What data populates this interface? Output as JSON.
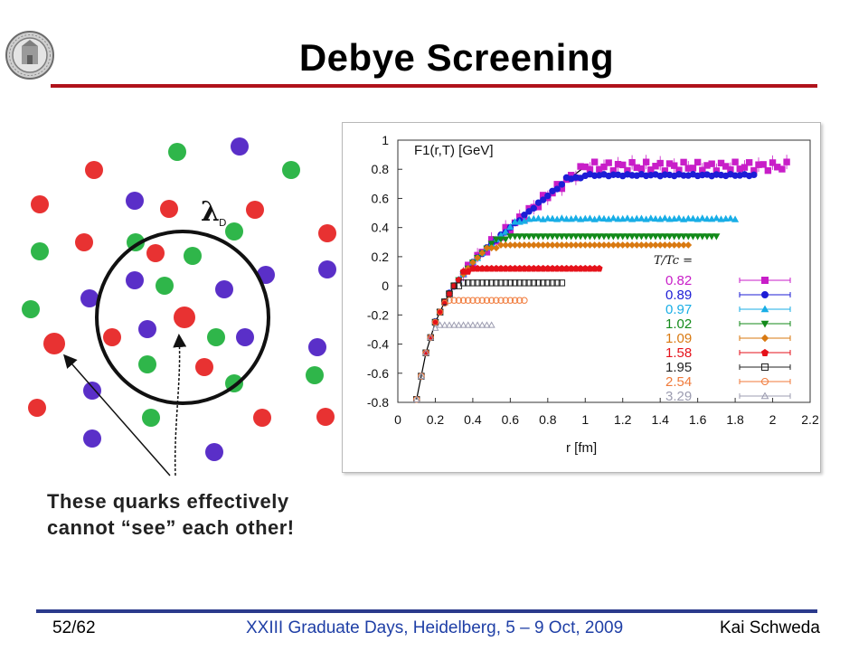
{
  "slide": {
    "title": "Debye Screening",
    "page": "52/62",
    "footer_center": "XXIII Graduate Days, Heidelberg, 5 – 9 Oct, 2009",
    "author": "Kai Schweda",
    "accent_color": "#b0121b",
    "footer_rule_color": "#2b3a8c"
  },
  "diagram": {
    "lambda_symbol": "λ",
    "lambda_sub": "D",
    "caption_line1": "These quarks effectively",
    "caption_line2": "cannot “see” each other!",
    "quark_colors": {
      "red": "#e83232",
      "green": "#2fb64a",
      "blue": "#5a2fc8"
    }
  },
  "chart_data": {
    "type": "scatter",
    "title": "",
    "ylabel_text": "F1(r,T) [GeV]",
    "xlabel": "r [fm]",
    "xlim": [
      0,
      2.2
    ],
    "ylim": [
      -0.8,
      1.0
    ],
    "xticks": [
      "0",
      "0.2",
      "0.4",
      "0.6",
      "0.8",
      "1",
      "1.2",
      "1.4",
      "1.6",
      "1.8",
      "2",
      "2.2"
    ],
    "yticks": [
      "-0.8",
      "-0.6",
      "-0.4",
      "-0.2",
      "0",
      "0.2",
      "0.4",
      "0.6",
      "0.8",
      "1"
    ],
    "legend_title": "T/Tc =",
    "legend_position": "right",
    "grid": false,
    "curve": {
      "type": "line",
      "color": "#000",
      "note": "T=0 potential",
      "x": [
        0.1,
        0.15,
        0.2,
        0.25,
        0.3,
        0.4,
        0.5,
        0.6,
        0.7,
        0.8,
        0.9,
        1.0
      ],
      "y": [
        -0.78,
        -0.46,
        -0.25,
        -0.11,
        0.0,
        0.16,
        0.29,
        0.4,
        0.51,
        0.62,
        0.72,
        0.82
      ]
    },
    "series": [
      {
        "name": "0.82",
        "color": "#c81ec8",
        "marker": "square-filled",
        "plateau": 0.88,
        "rmin": 0.35,
        "rmax": 2.08,
        "noise": 0.03
      },
      {
        "name": "0.89",
        "color": "#1d1dd6",
        "marker": "circle-filled",
        "plateau": 0.76,
        "rmin": 0.2,
        "rmax": 1.9,
        "noise": 0.006
      },
      {
        "name": "0.97",
        "color": "#19aee6",
        "marker": "triangle-up-filled",
        "plateau": 0.46,
        "rmin": 0.2,
        "rmax": 1.8,
        "noise": 0.004
      },
      {
        "name": "1.02",
        "color": "#138a1a",
        "marker": "triangle-down-filled",
        "plateau": 0.34,
        "rmin": 0.2,
        "rmax": 1.72,
        "noise": 0.0
      },
      {
        "name": "1.09",
        "color": "#d97a12",
        "marker": "diamond-filled",
        "plateau": 0.28,
        "rmin": 0.2,
        "rmax": 1.55,
        "noise": 0.0
      },
      {
        "name": "1.58",
        "color": "#e5121b",
        "marker": "pentagon-filled",
        "plateau": 0.12,
        "rmin": 0.15,
        "rmax": 1.08,
        "noise": 0.0
      },
      {
        "name": "1.95",
        "color": "#222222",
        "marker": "square-open",
        "plateau": 0.02,
        "rmin": 0.1,
        "rmax": 0.88,
        "noise": 0.0
      },
      {
        "name": "2.54",
        "color": "#f07a3a",
        "marker": "circle-open",
        "plateau": -0.1,
        "rmin": 0.1,
        "rmax": 0.68,
        "noise": 0.0
      },
      {
        "name": "3.29",
        "color": "#9c9cb0",
        "marker": "triangle-open",
        "plateau": -0.27,
        "rmin": 0.1,
        "rmax": 0.52,
        "noise": 0.0
      }
    ]
  }
}
